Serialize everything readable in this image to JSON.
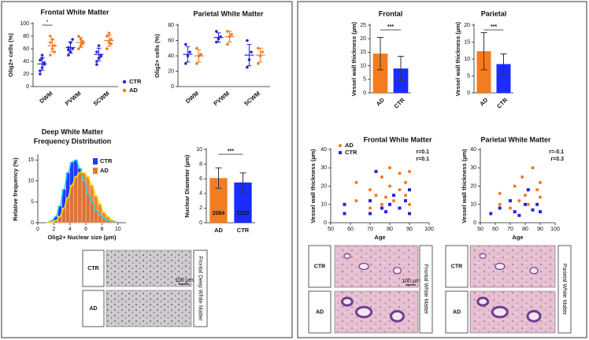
{
  "chart_data": [
    {
      "type": "dot",
      "title": "Frontal White Matter",
      "ylabel": "Olig2+ cells (%)",
      "ylim": [
        0,
        100
      ],
      "yticks": [
        0,
        20,
        40,
        60,
        80,
        100
      ],
      "categories": [
        "DWM",
        "PVWM",
        "SCWM"
      ],
      "annotation": "*",
      "series": [
        {
          "name": "CTR",
          "color": "#2626d9",
          "points": [
            [
              25,
              30,
              38,
              42,
              45,
              35,
              20,
              50
            ],
            [
              50,
              55,
              60,
              62,
              70,
              75,
              58
            ],
            [
              40,
              45,
              50,
              55,
              65,
              48,
              35
            ]
          ],
          "means": [
            36,
            62,
            51
          ],
          "errors": [
            10,
            9,
            10
          ]
        },
        {
          "name": "AD",
          "color": "#f07a22",
          "points": [
            [
              50,
              60,
              65,
              70,
              75,
              55,
              80
            ],
            [
              60,
              65,
              72,
              80,
              75,
              68
            ],
            [
              60,
              70,
              75,
              80,
              85,
              68
            ]
          ],
          "means": [
            65,
            70,
            73
          ],
          "errors": [
            10,
            8,
            9
          ]
        }
      ]
    },
    {
      "type": "dot",
      "title": "Parietal White Matter",
      "ylabel": "Olig2+ cells (%)",
      "ylim": [
        0,
        80
      ],
      "yticks": [
        0,
        20,
        40,
        60,
        80
      ],
      "categories": [
        "DWM",
        "PVWM",
        "SCWM"
      ],
      "series": [
        {
          "name": "CTR",
          "color": "#2626d9",
          "points": [
            [
              30,
              40,
              45,
              55
            ],
            [
              58,
              62,
              65,
              72
            ],
            [
              25,
              35,
              45,
              60
            ]
          ],
          "means": [
            42,
            64,
            41
          ],
          "errors": [
            10,
            6,
            14
          ]
        },
        {
          "name": "AD",
          "color": "#f07a22",
          "points": [
            [
              30,
              40,
              42,
              50
            ],
            [
              55,
              65,
              68,
              72
            ],
            [
              30,
              40,
              45,
              50
            ]
          ],
          "means": [
            40,
            65,
            41
          ],
          "errors": [
            8,
            7,
            9
          ]
        }
      ]
    },
    {
      "type": "histogram",
      "title": [
        "Deep White Matter",
        "Frequency Distribution"
      ],
      "xlabel": "Olig2+ Nuclear size (µm)",
      "ylabel": "Relative frequency (%)",
      "xlim": [
        0,
        11
      ],
      "xticks": [
        0,
        2,
        4,
        6,
        8,
        10
      ],
      "ylim": [
        0,
        16
      ],
      "yticks": [
        0,
        5,
        10,
        15
      ],
      "bins": [
        1,
        1.5,
        2,
        2.5,
        3,
        3.5,
        4,
        4.5,
        5,
        5.5,
        6,
        6.5,
        7,
        7.5,
        8,
        8.5,
        9,
        9.5,
        10
      ],
      "series": [
        {
          "name": "CTR",
          "color": "#1f3cff",
          "fit_color": "#22d3e6",
          "values": [
            0.2,
            0.5,
            1.5,
            4,
            8,
            12,
            14.5,
            15,
            13,
            10,
            7,
            5,
            3,
            1.8,
            1,
            0.5,
            0.3,
            0.1
          ]
        },
        {
          "name": "AD",
          "color": "#f07a22",
          "fit_color": "#f5e000",
          "values": [
            0.1,
            0.2,
            0.5,
            1.5,
            3.5,
            6,
            9,
            11,
            12,
            12,
            11,
            9,
            6.5,
            4.5,
            2.5,
            1.5,
            0.7,
            0.3
          ]
        }
      ]
    },
    {
      "type": "bar",
      "ylabel": "Nuclear Diameter (µm)",
      "ylim": [
        0,
        10
      ],
      "yticks": [
        0,
        2,
        4,
        6,
        8,
        10
      ],
      "annotation": "***",
      "categories": [
        "AD",
        "CTR"
      ],
      "values": [
        6.1,
        5.5
      ],
      "errors": [
        1.4,
        1.3
      ],
      "colors": [
        "#f47c20",
        "#1a2cff"
      ],
      "n_labels": [
        "2084",
        "1210"
      ]
    },
    {
      "type": "bar",
      "title": "Frontal",
      "ylabel": "Vessel wall thickness (µm)",
      "ylim": [
        0,
        25
      ],
      "yticks": [
        0,
        5,
        10,
        15,
        20,
        25
      ],
      "annotation": "***",
      "categories": [
        "AD",
        "CTR"
      ],
      "values": [
        14.5,
        9
      ],
      "errors": [
        6,
        4.5
      ],
      "colors": [
        "#f47c20",
        "#1a2cff"
      ]
    },
    {
      "type": "bar",
      "title": "Parietal",
      "ylabel": "Vessel wall thickness (µm)",
      "ylim": [
        0,
        20
      ],
      "yticks": [
        0,
        5,
        10,
        15,
        20
      ],
      "annotation": "***",
      "categories": [
        "AD",
        "CTR"
      ],
      "values": [
        12.3,
        8.5
      ],
      "errors": [
        5.5,
        3
      ],
      "colors": [
        "#f47c20",
        "#1a2cff"
      ]
    },
    {
      "type": "scatter",
      "title": "Frontal White Matter",
      "xlabel": "Age",
      "ylabel": "Vessel wall thickness (µm)",
      "xlim": [
        50,
        100
      ],
      "xticks": [
        50,
        60,
        70,
        80,
        90,
        100
      ],
      "ylim": [
        0,
        40
      ],
      "yticks": [
        0,
        10,
        20,
        30,
        40
      ],
      "series": [
        {
          "name": "AD",
          "color": "#f07a22",
          "marker": "circle",
          "r_label": "r=0.1",
          "x": [
            63,
            63,
            70,
            70,
            73,
            76,
            76,
            78,
            80,
            80,
            82,
            85,
            85,
            88,
            88,
            90,
            90
          ],
          "y": [
            12,
            22,
            8,
            18,
            15,
            10,
            25,
            14,
            20,
            30,
            12,
            18,
            27,
            15,
            22,
            10,
            28
          ]
        },
        {
          "name": "CTR",
          "color": "#2626d9",
          "marker": "square",
          "r_label": "r=0.1",
          "x": [
            57,
            57,
            70,
            70,
            73,
            76,
            78,
            80,
            82,
            85,
            88,
            90,
            90
          ],
          "y": [
            5,
            10,
            5,
            12,
            28,
            8,
            6,
            10,
            15,
            8,
            12,
            5,
            18
          ]
        }
      ]
    },
    {
      "type": "scatter",
      "title": "Parietal White Matter",
      "xlabel": "Age",
      "ylabel": "Vessel wall thickness (µm)",
      "xlim": [
        50,
        100
      ],
      "xticks": [
        50,
        60,
        70,
        80,
        90,
        100
      ],
      "ylim": [
        0,
        40
      ],
      "yticks": [
        0,
        10,
        20,
        30,
        40
      ],
      "series": [
        {
          "name": "CTR",
          "color": "#2626d9",
          "marker": "square",
          "r_label": "r=-0.1",
          "x": [
            57,
            63,
            70,
            73,
            76,
            80,
            82,
            85,
            88,
            90
          ],
          "y": [
            5,
            8,
            12,
            6,
            4,
            10,
            18,
            7,
            10,
            6
          ]
        },
        {
          "name": "AD",
          "color": "#f07a22",
          "marker": "circle",
          "r_label": "r=0.3",
          "x": [
            63,
            63,
            70,
            73,
            76,
            78,
            80,
            82,
            85,
            88,
            90,
            90
          ],
          "y": [
            10,
            16,
            8,
            20,
            12,
            25,
            15,
            10,
            30,
            18,
            14,
            22
          ]
        }
      ]
    }
  ],
  "images": [
    {
      "labels": [
        "CTR",
        "AD"
      ],
      "caption": "Frontal Deep White Matter",
      "scale_bar": "100 µm",
      "stain": "gray"
    },
    {
      "labels": [
        "CTR",
        "AD"
      ],
      "caption": "Frontal White Matter",
      "scale_bar": "100 µm",
      "stain": "he"
    },
    {
      "labels": [
        "CTR",
        "AD"
      ],
      "caption": "Parietal White Matter",
      "stain": "he"
    }
  ]
}
